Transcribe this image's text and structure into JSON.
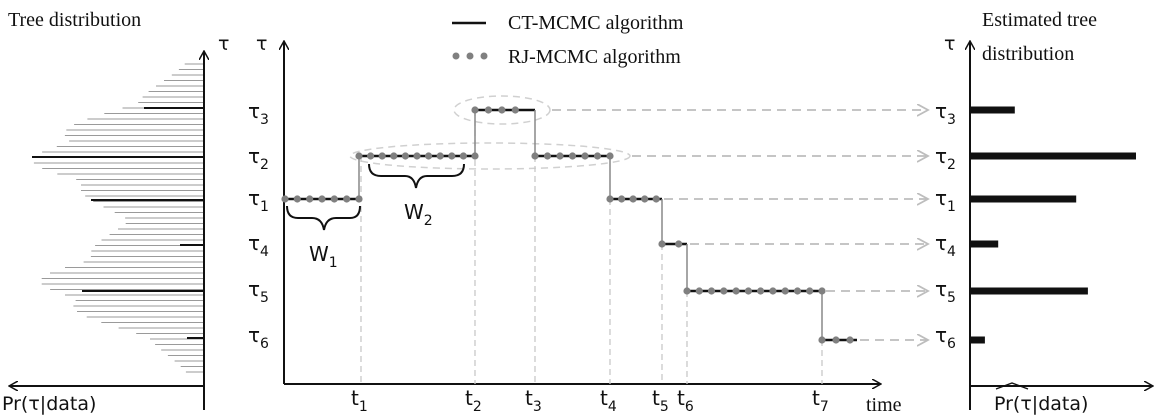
{
  "left_panel": {
    "title": "Tree distribution",
    "axis_label": "τ",
    "x_label": "Pr(τ|data)"
  },
  "main_panel": {
    "y_axis_label": "τ",
    "x_axis_label": "time",
    "legend": [
      {
        "label": "CT-MCMC algorithm",
        "style": "line"
      },
      {
        "label": "RJ-MCMC algorithm",
        "style": "dots"
      }
    ],
    "states": [
      "τ3",
      "τ2",
      "τ1",
      "τ4",
      "τ5",
      "τ6"
    ],
    "times": [
      "t1",
      "t2",
      "t3",
      "t4",
      "t5",
      "t6",
      "t7"
    ],
    "windows": [
      "W1",
      "W2"
    ]
  },
  "right_panel": {
    "title_line1": "Estimated tree",
    "title_line2": "distribution",
    "axis_label": "τ",
    "x_label": "Pr(τ|data)",
    "x_label_hat": "Pr",
    "rank_order": [
      "τ3",
      "τ2",
      "τ1",
      "τ4",
      "τ5",
      "τ6"
    ],
    "relative_probability": [
      0.27,
      1.0,
      0.64,
      0.17,
      0.71,
      0.09
    ]
  },
  "colors": {
    "ink": "#111111",
    "dot": "#808080",
    "dashed": "#bdbdbd",
    "left_bars": "#9a9a9a"
  }
}
